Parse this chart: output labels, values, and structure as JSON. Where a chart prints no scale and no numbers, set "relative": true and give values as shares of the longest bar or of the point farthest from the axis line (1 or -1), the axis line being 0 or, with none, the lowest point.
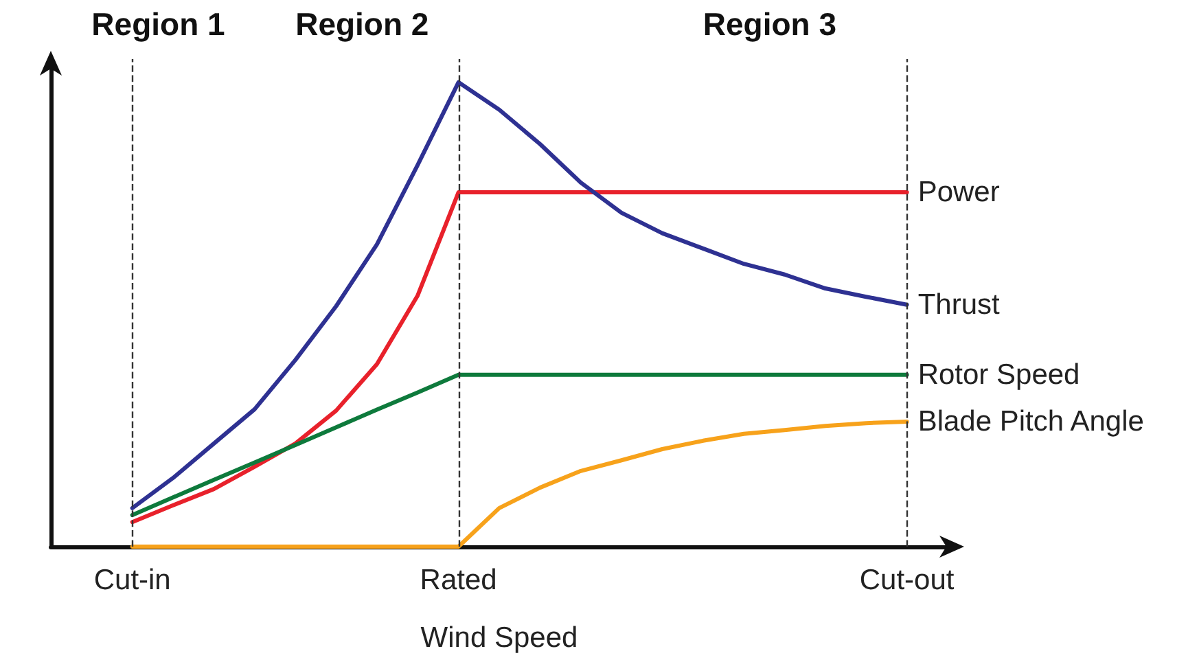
{
  "chart_data": {
    "type": "line",
    "relative": true,
    "xlabel": "Wind Speed",
    "categories": [
      null,
      null,
      "Cut-in",
      null,
      null,
      null,
      null,
      null,
      null,
      null,
      "Rated",
      null,
      null,
      null,
      null,
      null,
      null,
      null,
      null,
      null,
      null,
      "Cut-out",
      null
    ],
    "series": [
      {
        "name": "Power",
        "color": "#e8212b",
        "values": [
          null,
          null,
          0.053,
          0.089,
          0.124,
          0.172,
          0.222,
          0.293,
          0.393,
          0.541,
          0.763,
          0.763,
          0.763,
          0.763,
          0.763,
          0.763,
          0.763,
          0.763,
          0.763,
          0.763,
          0.763,
          0.763,
          null
        ]
      },
      {
        "name": "Thrust",
        "color": "#2e3192",
        "values": [
          null,
          null,
          0.083,
          0.148,
          0.222,
          0.296,
          0.402,
          0.518,
          0.651,
          0.822,
          1,
          0.941,
          0.867,
          0.784,
          0.719,
          0.675,
          0.642,
          0.609,
          0.586,
          0.556,
          0.538,
          0.521,
          null
        ]
      },
      {
        "name": "Rotor Speed",
        "color": "#0e7a3c",
        "values": [
          null,
          null,
          0.068,
          0.106,
          0.144,
          0.181,
          0.219,
          0.257,
          0.295,
          0.332,
          0.37,
          0.37,
          0.37,
          0.37,
          0.37,
          0.37,
          0.37,
          0.37,
          0.37,
          0.37,
          0.37,
          0.37,
          null
        ]
      },
      {
        "name": "Blade Pitch Angle",
        "color": "#f7a21b",
        "values": [
          null,
          null,
          0,
          0,
          0,
          0,
          0,
          0,
          0,
          0,
          0,
          0.083,
          0.127,
          0.163,
          0.186,
          0.21,
          0.228,
          0.243,
          0.251,
          0.26,
          0.266,
          0.269,
          null
        ]
      }
    ],
    "ref_lines": [
      {
        "axis": "x",
        "value": "Cut-in",
        "line_style": "dashed"
      },
      {
        "axis": "x",
        "value": "Rated",
        "line_style": "dashed"
      },
      {
        "axis": "x",
        "value": "Cut-out",
        "line_style": "dashed"
      }
    ],
    "annotations": [
      "Region 1",
      "Region 2",
      "Region 3"
    ],
    "grid": false,
    "legend": false,
    "marker": "none",
    "line_style": "solid"
  }
}
